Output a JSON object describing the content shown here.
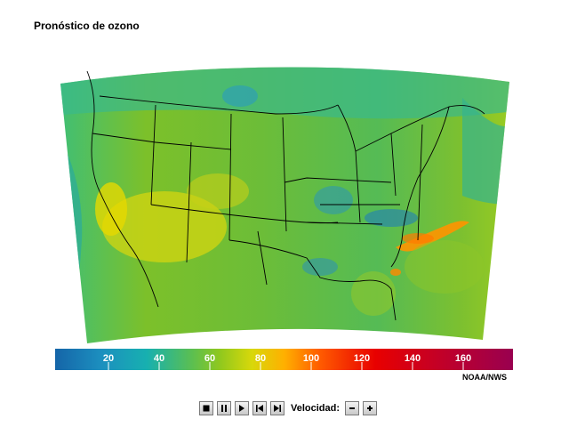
{
  "title": "Pronóstico de ozono",
  "credit": "NOAA/NWS",
  "colorbar": {
    "ticks": [
      "20",
      "40",
      "60",
      "80",
      "100",
      "120",
      "140",
      "160"
    ],
    "colors": [
      "#1565a8",
      "#15a3b8",
      "#3cbfa0",
      "#7cc02a",
      "#c8d410",
      "#f0d000",
      "#ff8c00",
      "#ff3a00",
      "#e00000",
      "#c4001a",
      "#b0103a",
      "#9a0050"
    ]
  },
  "controls": {
    "speed_label": "Velocidad:",
    "buttons": [
      "stop",
      "pause",
      "play",
      "step-back",
      "step-forward",
      "speed-minus",
      "speed-plus"
    ]
  }
}
